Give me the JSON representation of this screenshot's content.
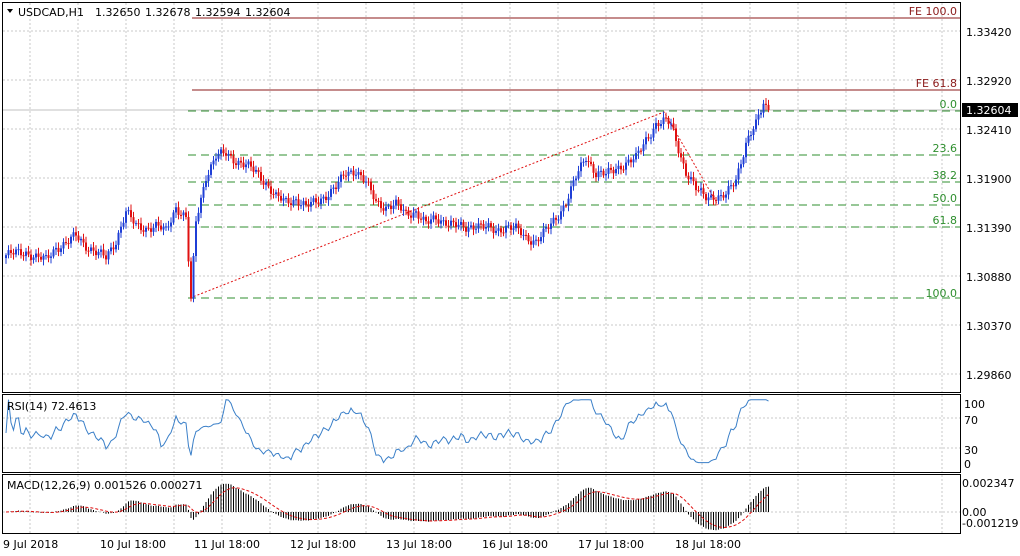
{
  "header": {
    "symbol": "USDCAD,H1",
    "open": "1.32650",
    "high": "1.32678",
    "low": "1.32594",
    "close": "1.32604"
  },
  "price_axis": {
    "ticks": [
      "1.33420",
      "1.32920",
      "1.32410",
      "1.31900",
      "1.31390",
      "1.30880",
      "1.30370",
      "1.29860"
    ],
    "current_price": "1.32604"
  },
  "time_axis": {
    "labels": [
      "9 Jul 2018",
      "10 Jul 18:00",
      "11 Jul 18:00",
      "12 Jul 18:00",
      "13 Jul 18:00",
      "16 Jul 18:00",
      "17 Jul 18:00",
      "18 Jul 18:00"
    ]
  },
  "fib_extension": {
    "labels": [
      "FE 100.0",
      "FE 61.8"
    ]
  },
  "fib_retracement": {
    "labels": [
      "0.0",
      "23.6",
      "38.2",
      "50.0",
      "61.8",
      "100.0"
    ]
  },
  "rsi": {
    "label": "RSI(14) 72.4613",
    "ticks": [
      "100",
      "70",
      "30",
      "0"
    ]
  },
  "macd": {
    "label": "MACD(12,26,9) 0.001526 0.000271",
    "ticks": [
      "0.002347",
      "0.00",
      "-0.001219"
    ]
  },
  "colors": {
    "bull": "#1f3fd6",
    "bear": "#e01010",
    "fib": "#2f8f2f",
    "fe": "#8b1a1a",
    "rsi": "#3a7fc8",
    "macd_signal": "#e01010"
  },
  "chart_data": {
    "type": "candlestick",
    "symbol": "USDCAD",
    "timeframe": "H1",
    "ylim": [
      1.2967,
      1.3358
    ],
    "close_path": [
      [
        0,
        1.311
      ],
      [
        4,
        1.3112
      ],
      [
        8,
        1.3113
      ],
      [
        12,
        1.3108
      ],
      [
        16,
        1.3105
      ],
      [
        20,
        1.3118
      ],
      [
        24,
        1.3122
      ],
      [
        28,
        1.313
      ],
      [
        32,
        1.312
      ],
      [
        36,
        1.3113
      ],
      [
        40,
        1.3107
      ],
      [
        44,
        1.3125
      ],
      [
        48,
        1.3155
      ],
      [
        52,
        1.314
      ],
      [
        56,
        1.3138
      ],
      [
        60,
        1.314
      ],
      [
        64,
        1.3135
      ],
      [
        68,
        1.316
      ],
      [
        72,
        1.3148
      ],
      [
        74,
        1.3062
      ],
      [
        76,
        1.3145
      ],
      [
        80,
        1.3192
      ],
      [
        84,
        1.3212
      ],
      [
        88,
        1.3215
      ],
      [
        92,
        1.3208
      ],
      [
        96,
        1.3203
      ],
      [
        100,
        1.3196
      ],
      [
        104,
        1.3185
      ],
      [
        108,
        1.317
      ],
      [
        112,
        1.3165
      ],
      [
        116,
        1.3168
      ],
      [
        120,
        1.316
      ],
      [
        124,
        1.3165
      ],
      [
        128,
        1.3172
      ],
      [
        132,
        1.318
      ],
      [
        136,
        1.3195
      ],
      [
        140,
        1.3198
      ],
      [
        144,
        1.3185
      ],
      [
        148,
        1.3165
      ],
      [
        152,
        1.316
      ],
      [
        156,
        1.3162
      ],
      [
        160,
        1.3153
      ],
      [
        164,
        1.3155
      ],
      [
        168,
        1.3142
      ],
      [
        172,
        1.3148
      ],
      [
        176,
        1.3145
      ],
      [
        180,
        1.314
      ],
      [
        184,
        1.3138
      ],
      [
        188,
        1.3142
      ],
      [
        192,
        1.3138
      ],
      [
        196,
        1.3135
      ],
      [
        200,
        1.314
      ],
      [
        204,
        1.3137
      ],
      [
        208,
        1.3128
      ],
      [
        212,
        1.3125
      ],
      [
        216,
        1.3135
      ],
      [
        220,
        1.3148
      ],
      [
        224,
        1.3165
      ],
      [
        228,
        1.319
      ],
      [
        232,
        1.3212
      ],
      [
        236,
        1.3195
      ],
      [
        240,
        1.3193
      ],
      [
        244,
        1.32
      ],
      [
        248,
        1.3205
      ],
      [
        252,
        1.321
      ],
      [
        256,
        1.323
      ],
      [
        260,
        1.3245
      ],
      [
        264,
        1.3248
      ],
      [
        266,
        1.3246
      ],
      [
        268,
        1.323
      ],
      [
        272,
        1.3195
      ],
      [
        276,
        1.3178
      ],
      [
        280,
        1.3172
      ],
      [
        284,
        1.317
      ],
      [
        286,
        1.3168
      ],
      [
        288,
        1.3172
      ],
      [
        292,
        1.319
      ],
      [
        296,
        1.3225
      ],
      [
        300,
        1.3245
      ],
      [
        303,
        1.3268
      ],
      [
        305,
        1.326
      ]
    ],
    "fibonacci_retracement": {
      "levels": [
        {
          "label": "0.0",
          "price": 1.3258
        },
        {
          "label": "23.6",
          "price": 1.3211
        },
        {
          "label": "38.2",
          "price": 1.3182
        },
        {
          "label": "50.0",
          "price": 1.3159
        },
        {
          "label": "61.8",
          "price": 1.3136
        },
        {
          "label": "100.0",
          "price": 1.3062
        }
      ]
    },
    "fibonacci_extension": {
      "levels": [
        {
          "label": "FE 100.0",
          "price": 1.3355
        },
        {
          "label": "FE 61.8",
          "price": 1.3281
        }
      ]
    },
    "rsi": {
      "period": 14,
      "current": 72.4613,
      "levels": [
        70,
        30
      ],
      "ylim": [
        0,
        100
      ]
    },
    "macd": {
      "params": [
        12,
        26,
        9
      ],
      "main": 0.001526,
      "signal": 0.000271,
      "ylim": [
        -0.001219,
        0.002347
      ]
    }
  }
}
